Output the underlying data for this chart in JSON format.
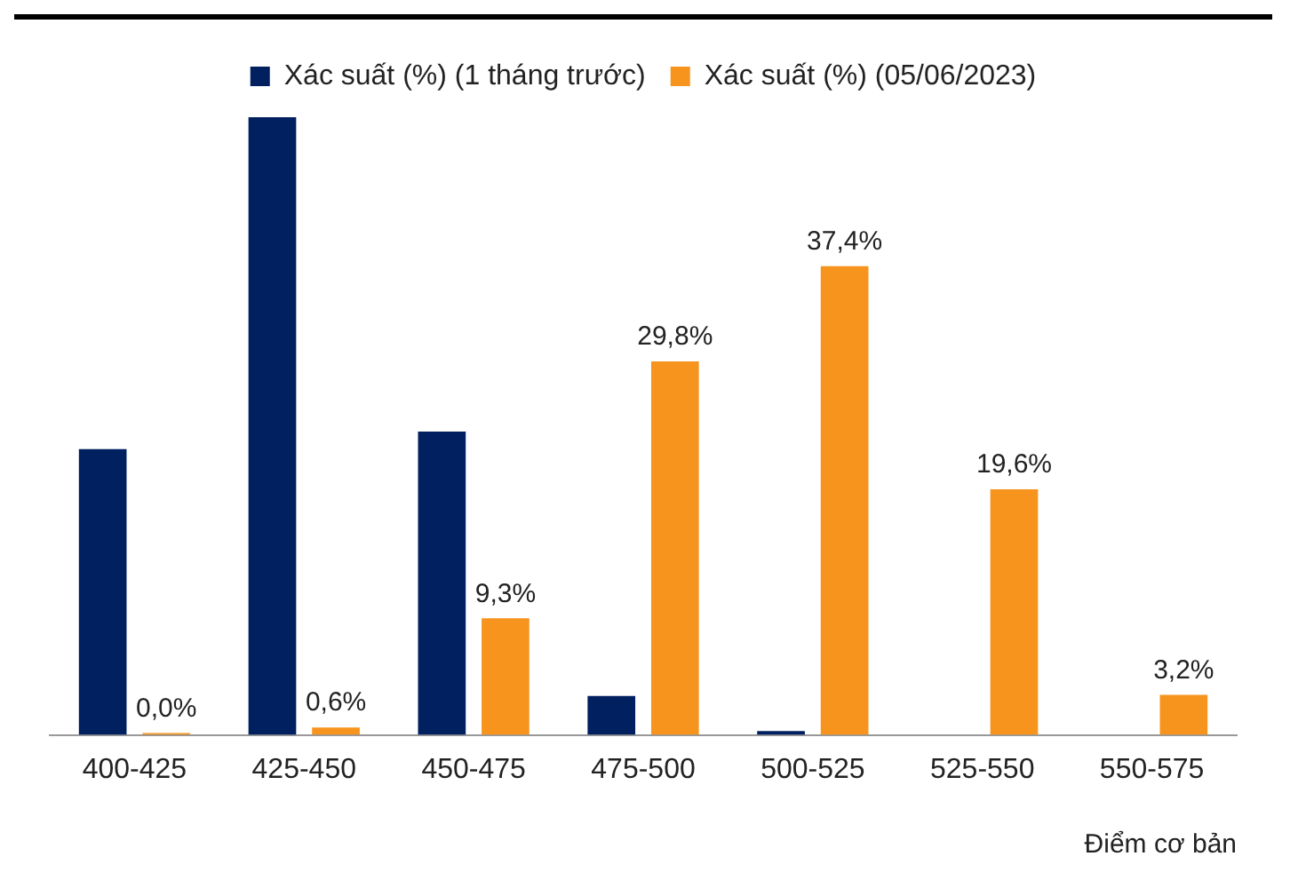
{
  "chart_data": {
    "type": "bar",
    "xlabel": "Điểm cơ bản",
    "categories": [
      "400-425",
      "425-450",
      "450-475",
      "475-500",
      "500-525",
      "525-550",
      "550-575"
    ],
    "series": [
      {
        "name": "Xác suất (%) (1 tháng trước)",
        "color": "#002060",
        "values": [
          22.8,
          49.3,
          24.2,
          3.1,
          0.3,
          0,
          0
        ]
      },
      {
        "name": "Xác suất (%) (05/06/2023)",
        "color": "#f7941d",
        "values": [
          0,
          0.6,
          9.3,
          29.8,
          37.4,
          19.6,
          3.2
        ],
        "value_labels": [
          "0,0%",
          "0,6%",
          "9,3%",
          "29,8%",
          "37,4%",
          "19,6%",
          "3,2%"
        ]
      }
    ],
    "legend": "top",
    "grid": false,
    "tick_labels": "x"
  }
}
